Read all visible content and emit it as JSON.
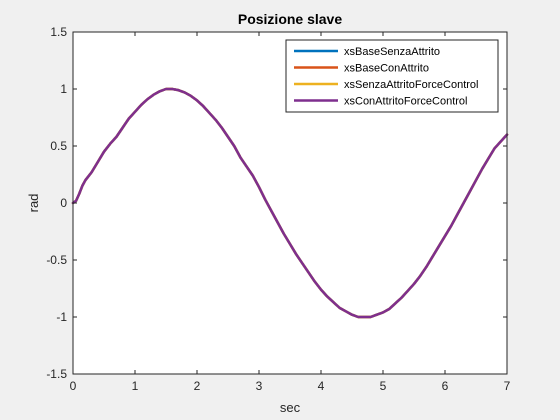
{
  "chart_data": {
    "type": "line",
    "title": "Posizione slave",
    "xlabel": "sec",
    "ylabel": "rad",
    "xlim": [
      0,
      7
    ],
    "ylim": [
      -1.5,
      1.5
    ],
    "xticks": [
      0,
      1,
      2,
      3,
      4,
      5,
      6,
      7
    ],
    "xtick_labels": [
      "0",
      "1",
      "2",
      "3",
      "4",
      "5",
      "6",
      "7"
    ],
    "yticks": [
      -1.5,
      -1,
      -0.5,
      0,
      0.5,
      1,
      1.5
    ],
    "ytick_labels": [
      "-1.5",
      "-1",
      "-0.5",
      "0",
      "0.5",
      "1",
      "1.5"
    ],
    "grid": false,
    "legend_location": "top-right",
    "x": [
      0,
      0.05,
      0.1,
      0.15,
      0.2,
      0.3,
      0.4,
      0.5,
      0.6,
      0.7,
      0.8,
      0.9,
      1.0,
      1.1,
      1.2,
      1.3,
      1.4,
      1.5,
      1.6,
      1.7,
      1.8,
      1.9,
      2.0,
      2.1,
      2.2,
      2.3,
      2.4,
      2.5,
      2.6,
      2.7,
      2.8,
      2.9,
      3.0,
      3.1,
      3.2,
      3.3,
      3.4,
      3.5,
      3.6,
      3.7,
      3.8,
      3.9,
      4.0,
      4.1,
      4.2,
      4.3,
      4.4,
      4.5,
      4.6,
      4.7,
      4.8,
      4.9,
      5.0,
      5.1,
      5.2,
      5.3,
      5.4,
      5.5,
      5.6,
      5.7,
      5.8,
      5.9,
      6.0,
      6.1,
      6.2,
      6.3,
      6.4,
      6.5,
      6.6,
      6.7,
      6.8,
      6.9,
      7.0
    ],
    "series": [
      {
        "name": "xsBaseSenzaAttrito",
        "color": "#0072BD",
        "values": [
          0,
          0.02,
          0.08,
          0.15,
          0.2,
          0.27,
          0.36,
          0.45,
          0.52,
          0.58,
          0.66,
          0.74,
          0.8,
          0.86,
          0.91,
          0.95,
          0.98,
          1.0,
          1.0,
          0.99,
          0.97,
          0.94,
          0.9,
          0.85,
          0.79,
          0.73,
          0.66,
          0.58,
          0.5,
          0.4,
          0.32,
          0.24,
          0.14,
          0.03,
          -0.07,
          -0.17,
          -0.27,
          -0.36,
          -0.45,
          -0.53,
          -0.61,
          -0.69,
          -0.76,
          -0.82,
          -0.87,
          -0.92,
          -0.95,
          -0.98,
          -1.0,
          -1.0,
          -1.0,
          -0.98,
          -0.96,
          -0.93,
          -0.88,
          -0.83,
          -0.77,
          -0.71,
          -0.64,
          -0.56,
          -0.47,
          -0.38,
          -0.29,
          -0.2,
          -0.1,
          0.0,
          0.1,
          0.2,
          0.3,
          0.39,
          0.48,
          0.54,
          0.6
        ]
      },
      {
        "name": "xsBaseConAttrito",
        "color": "#D95319",
        "values": [
          0,
          0.02,
          0.08,
          0.15,
          0.2,
          0.27,
          0.36,
          0.45,
          0.52,
          0.58,
          0.66,
          0.74,
          0.8,
          0.86,
          0.91,
          0.95,
          0.98,
          1.0,
          1.0,
          0.99,
          0.97,
          0.94,
          0.9,
          0.85,
          0.79,
          0.73,
          0.66,
          0.58,
          0.5,
          0.4,
          0.32,
          0.24,
          0.14,
          0.03,
          -0.07,
          -0.17,
          -0.27,
          -0.36,
          -0.45,
          -0.53,
          -0.61,
          -0.69,
          -0.76,
          -0.82,
          -0.87,
          -0.92,
          -0.95,
          -0.98,
          -1.0,
          -1.0,
          -1.0,
          -0.98,
          -0.96,
          -0.93,
          -0.88,
          -0.83,
          -0.77,
          -0.71,
          -0.64,
          -0.56,
          -0.47,
          -0.38,
          -0.29,
          -0.2,
          -0.1,
          0.0,
          0.1,
          0.2,
          0.3,
          0.39,
          0.48,
          0.54,
          0.6
        ]
      },
      {
        "name": "xsSenzaAttritoForceControl",
        "color": "#EDB120",
        "values": [
          0,
          0.02,
          0.08,
          0.15,
          0.2,
          0.27,
          0.36,
          0.45,
          0.52,
          0.58,
          0.66,
          0.74,
          0.8,
          0.86,
          0.91,
          0.95,
          0.98,
          1.0,
          1.0,
          0.99,
          0.97,
          0.94,
          0.9,
          0.85,
          0.79,
          0.73,
          0.66,
          0.58,
          0.5,
          0.4,
          0.32,
          0.24,
          0.14,
          0.03,
          -0.07,
          -0.17,
          -0.27,
          -0.36,
          -0.45,
          -0.53,
          -0.61,
          -0.69,
          -0.76,
          -0.82,
          -0.87,
          -0.92,
          -0.95,
          -0.98,
          -1.0,
          -1.0,
          -1.0,
          -0.98,
          -0.96,
          -0.93,
          -0.88,
          -0.83,
          -0.77,
          -0.71,
          -0.64,
          -0.56,
          -0.47,
          -0.38,
          -0.29,
          -0.2,
          -0.1,
          0.0,
          0.1,
          0.2,
          0.3,
          0.39,
          0.48,
          0.54,
          0.6
        ]
      },
      {
        "name": "xsConAttritoForceControl",
        "color": "#7E2F8E",
        "values": [
          0,
          0.02,
          0.08,
          0.15,
          0.2,
          0.27,
          0.36,
          0.45,
          0.52,
          0.58,
          0.66,
          0.74,
          0.8,
          0.86,
          0.91,
          0.95,
          0.98,
          1.0,
          1.0,
          0.99,
          0.97,
          0.94,
          0.9,
          0.85,
          0.79,
          0.73,
          0.66,
          0.58,
          0.5,
          0.4,
          0.32,
          0.24,
          0.14,
          0.03,
          -0.07,
          -0.17,
          -0.27,
          -0.36,
          -0.45,
          -0.53,
          -0.61,
          -0.69,
          -0.76,
          -0.82,
          -0.87,
          -0.92,
          -0.95,
          -0.98,
          -1.0,
          -1.0,
          -1.0,
          -0.98,
          -0.96,
          -0.93,
          -0.88,
          -0.83,
          -0.77,
          -0.71,
          -0.64,
          -0.56,
          -0.47,
          -0.38,
          -0.29,
          -0.2,
          -0.1,
          0.0,
          0.1,
          0.2,
          0.3,
          0.39,
          0.48,
          0.54,
          0.6
        ]
      }
    ]
  }
}
